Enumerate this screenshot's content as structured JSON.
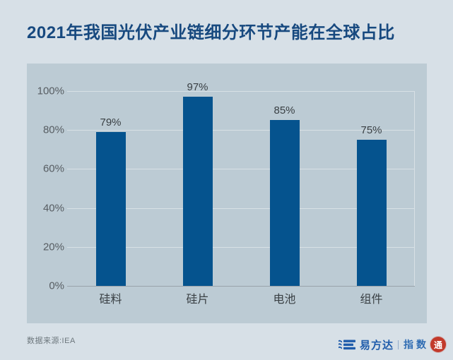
{
  "page": {
    "title": "2021年我国光伏产业链细分环节产能在全球占比"
  },
  "chart_data": {
    "type": "bar",
    "title": "2021年我国光伏产业链细分环节产能在全球占比",
    "categories": [
      "硅料",
      "硅片",
      "电池",
      "组件"
    ],
    "values": [
      79,
      97,
      85,
      75
    ],
    "value_labels": [
      "79%",
      "97%",
      "85%",
      "75%"
    ],
    "xlabel": "",
    "ylabel": "",
    "ylim": [
      0,
      100
    ],
    "yticks": [
      0,
      20,
      40,
      60,
      80,
      100
    ],
    "ytick_labels": [
      "0%",
      "20%",
      "40%",
      "60%",
      "80%",
      "100%"
    ],
    "grid": true,
    "legend": false,
    "bar_color": "#05538e",
    "plot_background": "#bccbd4",
    "page_background": "#d7e0e7",
    "source": "IEA"
  },
  "footer": {
    "source_text": "数据来源:IEA",
    "logo": {
      "brand_icon": "wave-e-icon",
      "brand_name": "易方达",
      "product_name": "指数",
      "seal_text": "通",
      "brand_color": "#1f5cab",
      "seal_color": "#c23a2b"
    }
  },
  "colors": {
    "title": "#17497f",
    "tick_label": "#575d62",
    "value_label": "#3a4044",
    "gridline": "#d8e0e5",
    "axis_line": "#9aa3ab"
  }
}
